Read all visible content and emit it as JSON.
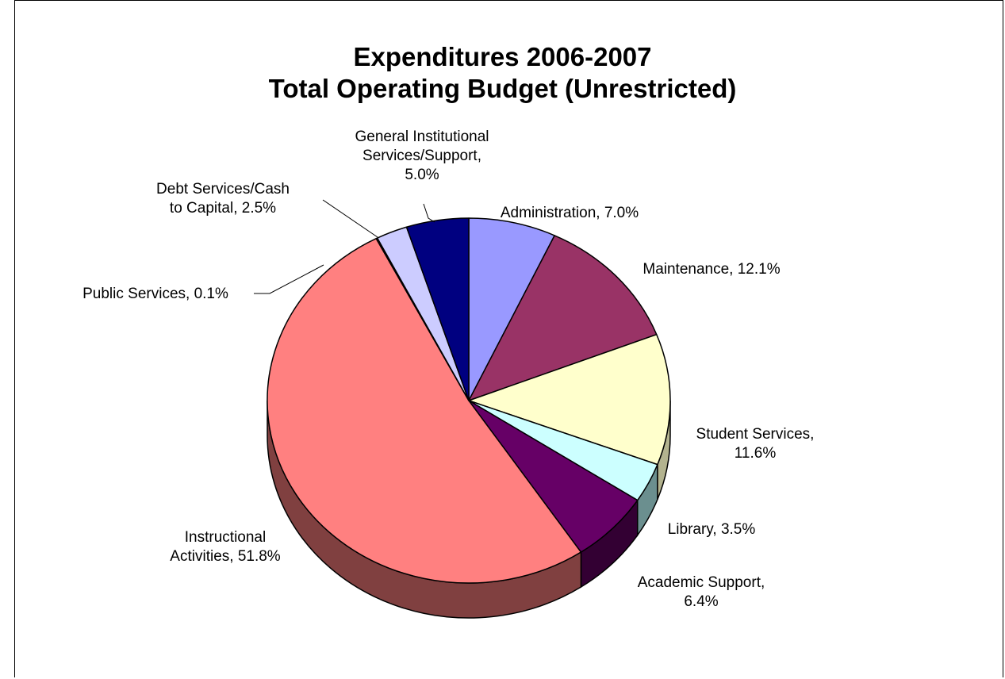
{
  "chart_data": {
    "type": "pie",
    "title": "Expenditures 2006-2007",
    "subtitle": "Total Operating Budget (Unrestricted)",
    "slices": [
      {
        "name": "Administration",
        "value": 7.0,
        "color": "#9999ff",
        "side": "#6b6bb3",
        "label_lines": [
          "Administration, 7.0%"
        ]
      },
      {
        "name": "Maintenance",
        "value": 12.1,
        "color": "#993366",
        "side": "#6b2447",
        "label_lines": [
          "Maintenance, 12.1%"
        ]
      },
      {
        "name": "Student Services",
        "value": 11.6,
        "color": "#ffffcc",
        "side": "#b3b38f",
        "label_lines": [
          "Student Services,",
          "11.6%"
        ]
      },
      {
        "name": "Library",
        "value": 3.5,
        "color": "#ccffff",
        "side": "#6b8f8f",
        "label_lines": [
          "Library, 3.5%"
        ]
      },
      {
        "name": "Academic Support",
        "value": 6.4,
        "color": "#660066",
        "side": "#330033",
        "label_lines": [
          "Academic Support,",
          "6.4%"
        ]
      },
      {
        "name": "Instructional Activities",
        "value": 51.8,
        "color": "#ff8080",
        "side": "#804040",
        "label_lines": [
          "Instructional",
          "Activities, 51.8%"
        ]
      },
      {
        "name": "Public Services",
        "value": 0.1,
        "color": "#ff8080",
        "side": "#804040",
        "label_lines": [
          "Public Services, 0.1%"
        ]
      },
      {
        "name": "Debt Services/Cash to Capital",
        "value": 2.5,
        "color": "#ccccff",
        "side": "#8f8fb3",
        "label_lines": [
          "Debt Services/Cash",
          "to Capital, 2.5%"
        ]
      },
      {
        "name": "General Institutional Services/Support",
        "value": 5.0,
        "color": "#000080",
        "side": "#000040",
        "label_lines": [
          "General Institutional",
          "Services/Support,",
          "5.0%"
        ]
      }
    ],
    "start_angle_deg": 0,
    "direction": "clockwise",
    "style": "3d-pie",
    "legend": "none"
  }
}
